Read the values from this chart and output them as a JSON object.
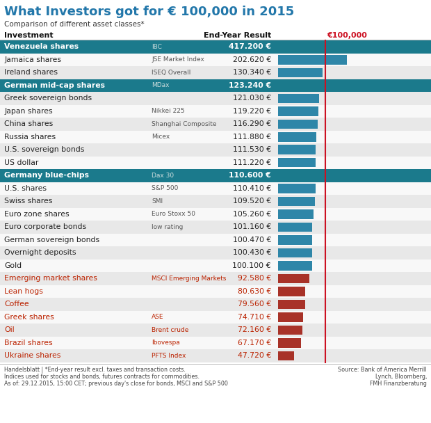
{
  "title": "What Investors got for € 100,000 in 2015",
  "subtitle": "Comparison of different asset classes*",
  "col_investment": "Investment",
  "col_result": "End-Year Result",
  "col_baseline": "€100,000",
  "rows": [
    {
      "label": "Venezuela shares",
      "index_label": "IBC",
      "value": 417200,
      "highlight": "teal"
    },
    {
      "label": "Jamaica shares",
      "index_label": "JSE Market Index",
      "value": 202620,
      "highlight": "none"
    },
    {
      "label": "Ireland shares",
      "index_label": "ISEQ Overall",
      "value": 130340,
      "highlight": "none"
    },
    {
      "label": "German mid-cap shares",
      "index_label": "MDax",
      "value": 123240,
      "highlight": "teal"
    },
    {
      "label": "Greek sovereign bonds",
      "index_label": "",
      "value": 121030,
      "highlight": "none"
    },
    {
      "label": "Japan shares",
      "index_label": "Nikkei 225",
      "value": 119220,
      "highlight": "none"
    },
    {
      "label": "China shares",
      "index_label": "Shanghai Composite",
      "value": 116290,
      "highlight": "none"
    },
    {
      "label": "Russia shares",
      "index_label": "Micex",
      "value": 111880,
      "highlight": "none"
    },
    {
      "label": "U.S. sovereign bonds",
      "index_label": "",
      "value": 111530,
      "highlight": "none"
    },
    {
      "label": "US dollar",
      "index_label": "",
      "value": 111220,
      "highlight": "none"
    },
    {
      "label": "Germany blue-chips",
      "index_label": "Dax 30",
      "value": 110600,
      "highlight": "teal"
    },
    {
      "label": "U.S. shares",
      "index_label": "S&P 500",
      "value": 110410,
      "highlight": "none"
    },
    {
      "label": "Swiss shares",
      "index_label": "SMI",
      "value": 109520,
      "highlight": "none"
    },
    {
      "label": "Euro zone shares",
      "index_label": "Euro Stoxx 50",
      "value": 105260,
      "highlight": "none"
    },
    {
      "label": "Euro corporate bonds",
      "index_label": "low rating",
      "value": 101160,
      "highlight": "none"
    },
    {
      "label": "German sovereign bonds",
      "index_label": "",
      "value": 100470,
      "highlight": "none"
    },
    {
      "label": "Overnight deposits",
      "index_label": "",
      "value": 100430,
      "highlight": "none"
    },
    {
      "label": "Gold",
      "index_label": "",
      "value": 100100,
      "highlight": "none"
    },
    {
      "label": "Emerging market shares",
      "index_label": "MSCI Emerging Markets",
      "value": 92580,
      "highlight": "none"
    },
    {
      "label": "Lean hogs",
      "index_label": "",
      "value": 80630,
      "highlight": "none"
    },
    {
      "label": "Coffee",
      "index_label": "",
      "value": 79560,
      "highlight": "none"
    },
    {
      "label": "Greek shares",
      "index_label": "ASE",
      "value": 74710,
      "highlight": "none"
    },
    {
      "label": "Oil",
      "index_label": "Brent crude",
      "value": 72160,
      "highlight": "none"
    },
    {
      "label": "Brazil shares",
      "index_label": "Ibovespa",
      "value": 67170,
      "highlight": "none"
    },
    {
      "label": "Ukraine shares",
      "index_label": "PFTS Index",
      "value": 47720,
      "highlight": "none"
    }
  ],
  "teal_color": "#1b7a8c",
  "blue_bar_color": "#2e86a8",
  "red_bar_color": "#a83228",
  "red_line_color": "#cc1122",
  "baseline": 100000,
  "max_bar_val": 430000,
  "stripe_odd": "#e8e8e8",
  "stripe_even": "#f8f8f8",
  "footer_left": "Handelsblatt | *End-year result excl. taxes and transaction costs.\nIndices used for stocks and bonds, futures contracts for commodities.\nAs of: 29.12.2015, 15:00 CET; previous day's close for bonds, MSCI and S&P 500",
  "footer_right": "Source: Bank of America Merrill\nLynch, Bloomberg,\nFMH Finanzberatung"
}
